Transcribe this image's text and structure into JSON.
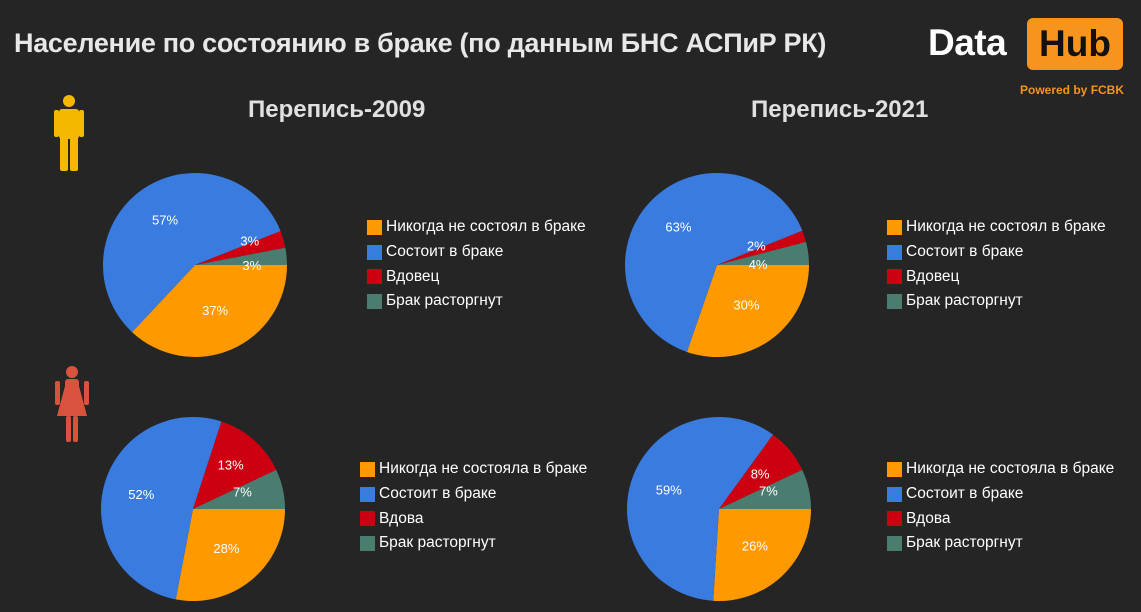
{
  "page": {
    "title": "Население по состоянию в браке (по данным БНС АСПиР РК)",
    "logo": {
      "word1": "Data",
      "word2": "Hub",
      "powered_by": "Powered by FCBK"
    },
    "colors": {
      "background": "#252525",
      "logo_accent": "#f7941d",
      "male_icon": "#f5b800",
      "female_icon": "#d9523d"
    },
    "icons": {
      "male": "man-icon",
      "female": "woman-icon"
    }
  },
  "chart_data": [
    {
      "type": "pie",
      "title": "Перепись-2009",
      "group": "male",
      "slices": [
        {
          "label": "Никогда не состоял в браке",
          "value": 37,
          "color": "#ff9900"
        },
        {
          "label": "Состоит в браке",
          "value": 57,
          "color": "#3a7be0"
        },
        {
          "label": "Вдовец",
          "value": 3,
          "color": "#cc0011"
        },
        {
          "label": "Брак расторгнут",
          "value": 3,
          "color": "#4a7c70"
        }
      ]
    },
    {
      "type": "pie",
      "title": "Перепись-2021",
      "group": "male",
      "slices": [
        {
          "label": "Никогда не состоял в браке",
          "value": 30,
          "color": "#ff9900"
        },
        {
          "label": "Состоит в браке",
          "value": 63,
          "color": "#3a7be0"
        },
        {
          "label": "Вдовец",
          "value": 2,
          "color": "#cc0011"
        },
        {
          "label": "Брак расторгнут",
          "value": 4,
          "color": "#4a7c70"
        }
      ]
    },
    {
      "type": "pie",
      "title": "",
      "group": "female",
      "slices": [
        {
          "label": "Никогда не состояла в браке",
          "value": 28,
          "color": "#ff9900"
        },
        {
          "label": "Состоит в браке",
          "value": 52,
          "color": "#3a7be0"
        },
        {
          "label": "Вдова",
          "value": 13,
          "color": "#cc0011"
        },
        {
          "label": "Брак расторгнут",
          "value": 7,
          "color": "#4a7c70"
        }
      ]
    },
    {
      "type": "pie",
      "title": "",
      "group": "female",
      "slices": [
        {
          "label": "Никогда не состояла в браке",
          "value": 26,
          "color": "#ff9900"
        },
        {
          "label": "Состоит в браке",
          "value": 59,
          "color": "#3a7be0"
        },
        {
          "label": "Вдова",
          "value": 8,
          "color": "#cc0011"
        },
        {
          "label": "Брак расторгнут",
          "value": 7,
          "color": "#4a7c70"
        }
      ]
    }
  ]
}
